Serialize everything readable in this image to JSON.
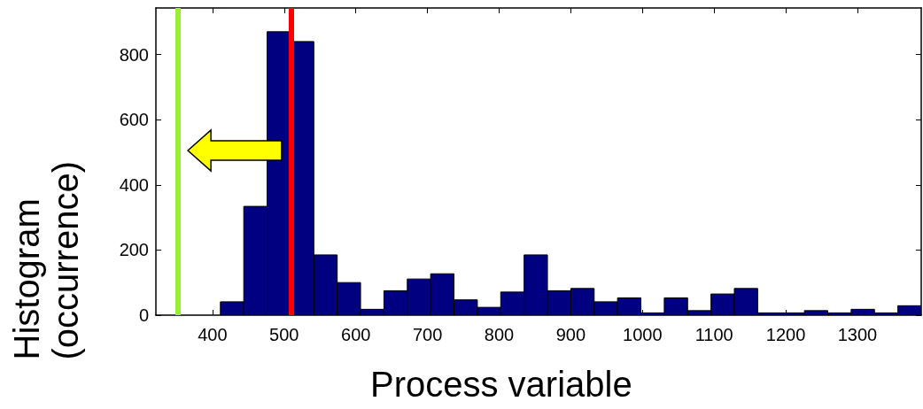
{
  "chart_data": {
    "type": "histogram",
    "xlabel": "Process variable",
    "ylabel": "Histogram\n(occurrence)",
    "color": "#000080",
    "bins": [
      411,
      443.6,
      476.2,
      508.8,
      541.4,
      574,
      606.6,
      639.2,
      671.8,
      704.4,
      737,
      769.6,
      802.2,
      834.8,
      867.4,
      900,
      932.6,
      965.2,
      997.8,
      1030.4,
      1063,
      1095.6,
      1128.2,
      1160.8,
      1193.4,
      1226,
      1258.6,
      1291.2,
      1323.8,
      1356.4,
      1389
    ],
    "values": [
      41,
      334,
      870,
      840,
      185,
      100,
      18,
      75,
      111,
      127,
      47,
      24,
      71,
      185,
      75,
      82,
      41,
      53,
      7,
      53,
      14,
      65,
      82,
      7,
      7,
      14,
      7,
      18,
      7,
      29
    ],
    "xlim": [
      321,
      1389
    ],
    "xticks": [
      400,
      500,
      600,
      700,
      800,
      900,
      1000,
      1100,
      1200,
      1300
    ],
    "ylim": [
      0,
      943
    ],
    "yticks": [
      0,
      200,
      400,
      600,
      800
    ],
    "ref_lines": [
      {
        "axis": "x",
        "value": 352,
        "color": "#99ee33"
      },
      {
        "axis": "x",
        "value": 510,
        "color": "#ff0000"
      }
    ]
  }
}
